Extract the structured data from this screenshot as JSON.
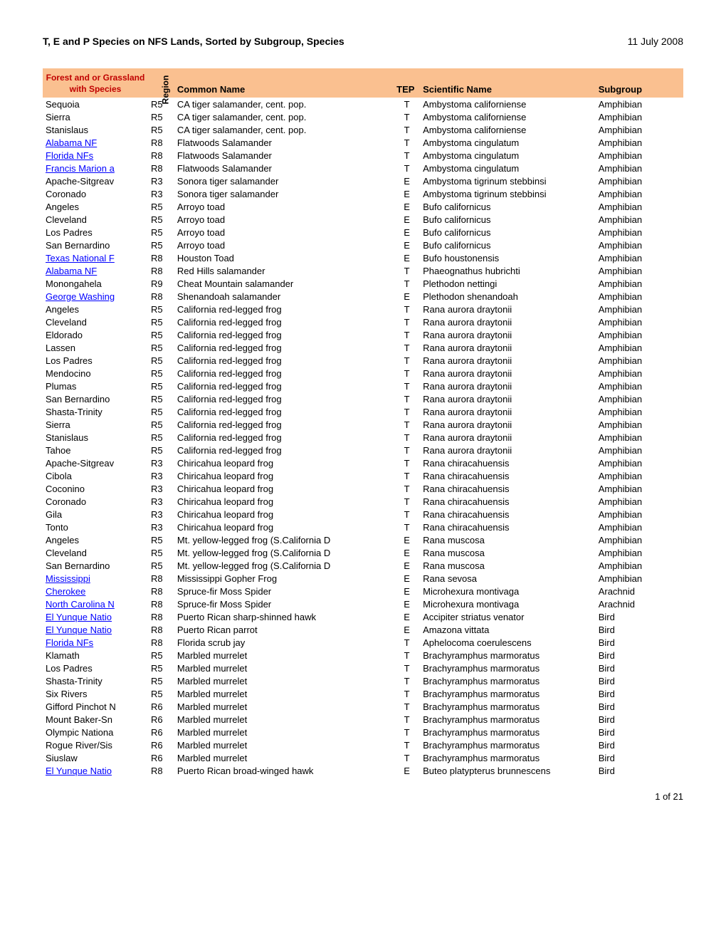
{
  "title": "T, E and P Species on NFS Lands, Sorted by Subgroup, Species",
  "date": "11 July 2008",
  "footer": "1 of 21",
  "headers": {
    "forest": "Forest and or Grassland with Species",
    "region": "Region",
    "common": "Common Name",
    "tep": "TEP",
    "scientific": "Scientific Name",
    "subgroup": "Subgroup"
  },
  "rows": [
    {
      "forest": "Sequoia",
      "link": false,
      "region": "R5",
      "common": "CA tiger salamander, cent. pop.",
      "tep": "T",
      "scientific": "Ambystoma californiense",
      "subgroup": "Amphibian"
    },
    {
      "forest": "Sierra",
      "link": false,
      "region": "R5",
      "common": "CA tiger salamander, cent. pop.",
      "tep": "T",
      "scientific": "Ambystoma californiense",
      "subgroup": "Amphibian"
    },
    {
      "forest": "Stanislaus",
      "link": false,
      "region": "R5",
      "common": "CA tiger salamander, cent. pop.",
      "tep": "T",
      "scientific": "Ambystoma californiense",
      "subgroup": "Amphibian"
    },
    {
      "forest": "Alabama NF",
      "link": true,
      "region": "R8",
      "common": "Flatwoods Salamander",
      "tep": "T",
      "scientific": "Ambystoma cingulatum",
      "subgroup": "Amphibian"
    },
    {
      "forest": "Florida NFs",
      "link": true,
      "region": "R8",
      "common": "Flatwoods Salamander",
      "tep": "T",
      "scientific": "Ambystoma cingulatum",
      "subgroup": "Amphibian"
    },
    {
      "forest": "Francis Marion a",
      "link": true,
      "region": "R8",
      "common": "Flatwoods Salamander",
      "tep": "T",
      "scientific": "Ambystoma cingulatum",
      "subgroup": "Amphibian"
    },
    {
      "forest": "Apache-Sitgreav",
      "link": false,
      "region": "R3",
      "common": "Sonora tiger salamander",
      "tep": "E",
      "scientific": "Ambystoma tigrinum stebbinsi",
      "subgroup": "Amphibian"
    },
    {
      "forest": "Coronado",
      "link": false,
      "region": "R3",
      "common": "Sonora tiger salamander",
      "tep": "E",
      "scientific": "Ambystoma tigrinum stebbinsi",
      "subgroup": "Amphibian"
    },
    {
      "forest": "Angeles",
      "link": false,
      "region": "R5",
      "common": "Arroyo toad",
      "tep": "E",
      "scientific": "Bufo californicus",
      "subgroup": "Amphibian"
    },
    {
      "forest": "Cleveland",
      "link": false,
      "region": "R5",
      "common": "Arroyo toad",
      "tep": "E",
      "scientific": "Bufo californicus",
      "subgroup": "Amphibian"
    },
    {
      "forest": "Los Padres",
      "link": false,
      "region": "R5",
      "common": "Arroyo toad",
      "tep": "E",
      "scientific": "Bufo californicus",
      "subgroup": "Amphibian"
    },
    {
      "forest": "San Bernardino",
      "link": false,
      "region": "R5",
      "common": "Arroyo toad",
      "tep": "E",
      "scientific": "Bufo californicus",
      "subgroup": "Amphibian"
    },
    {
      "forest": "Texas National F",
      "link": true,
      "region": "R8",
      "common": "Houston Toad",
      "tep": "E",
      "scientific": "Bufo houstonensis",
      "subgroup": "Amphibian"
    },
    {
      "forest": "Alabama NF",
      "link": true,
      "region": "R8",
      "common": "Red Hills salamander",
      "tep": "T",
      "scientific": "Phaeognathus hubrichti",
      "subgroup": "Amphibian"
    },
    {
      "forest": "Monongahela",
      "link": false,
      "region": "R9",
      "common": "Cheat Mountain salamander",
      "tep": "T",
      "scientific": "Plethodon nettingi",
      "subgroup": "Amphibian"
    },
    {
      "forest": "George Washing",
      "link": true,
      "region": "R8",
      "common": "Shenandoah salamander",
      "tep": "E",
      "scientific": "Plethodon shenandoah",
      "subgroup": "Amphibian"
    },
    {
      "forest": "Angeles",
      "link": false,
      "region": "R5",
      "common": "California red-legged frog",
      "tep": "T",
      "scientific": "Rana aurora draytonii",
      "subgroup": "Amphibian"
    },
    {
      "forest": "Cleveland",
      "link": false,
      "region": "R5",
      "common": "California red-legged frog",
      "tep": "T",
      "scientific": "Rana aurora draytonii",
      "subgroup": "Amphibian"
    },
    {
      "forest": "Eldorado",
      "link": false,
      "region": "R5",
      "common": "California red-legged frog",
      "tep": "T",
      "scientific": "Rana aurora draytonii",
      "subgroup": "Amphibian"
    },
    {
      "forest": "Lassen",
      "link": false,
      "region": "R5",
      "common": "California red-legged frog",
      "tep": "T",
      "scientific": "Rana aurora draytonii",
      "subgroup": "Amphibian"
    },
    {
      "forest": "Los Padres",
      "link": false,
      "region": "R5",
      "common": "California red-legged frog",
      "tep": "T",
      "scientific": "Rana aurora draytonii",
      "subgroup": "Amphibian"
    },
    {
      "forest": "Mendocino",
      "link": false,
      "region": "R5",
      "common": "California red-legged frog",
      "tep": "T",
      "scientific": "Rana aurora draytonii",
      "subgroup": "Amphibian"
    },
    {
      "forest": "Plumas",
      "link": false,
      "region": "R5",
      "common": "California red-legged frog",
      "tep": "T",
      "scientific": "Rana aurora draytonii",
      "subgroup": "Amphibian"
    },
    {
      "forest": "San Bernardino",
      "link": false,
      "region": "R5",
      "common": "California red-legged frog",
      "tep": "T",
      "scientific": "Rana aurora draytonii",
      "subgroup": "Amphibian"
    },
    {
      "forest": "Shasta-Trinity",
      "link": false,
      "region": "R5",
      "common": "California red-legged frog",
      "tep": "T",
      "scientific": "Rana aurora draytonii",
      "subgroup": "Amphibian"
    },
    {
      "forest": "Sierra",
      "link": false,
      "region": "R5",
      "common": "California red-legged frog",
      "tep": "T",
      "scientific": "Rana aurora draytonii",
      "subgroup": "Amphibian"
    },
    {
      "forest": "Stanislaus",
      "link": false,
      "region": "R5",
      "common": "California red-legged frog",
      "tep": "T",
      "scientific": "Rana aurora draytonii",
      "subgroup": "Amphibian"
    },
    {
      "forest": "Tahoe",
      "link": false,
      "region": "R5",
      "common": "California red-legged frog",
      "tep": "T",
      "scientific": "Rana aurora draytonii",
      "subgroup": "Amphibian"
    },
    {
      "forest": "Apache-Sitgreav",
      "link": false,
      "region": "R3",
      "common": "Chiricahua leopard frog",
      "tep": "T",
      "scientific": "Rana chiracahuensis",
      "subgroup": "Amphibian"
    },
    {
      "forest": "Cibola",
      "link": false,
      "region": "R3",
      "common": "Chiricahua leopard frog",
      "tep": "T",
      "scientific": "Rana chiracahuensis",
      "subgroup": "Amphibian"
    },
    {
      "forest": "Coconino",
      "link": false,
      "region": "R3",
      "common": "Chiricahua leopard frog",
      "tep": "T",
      "scientific": "Rana chiracahuensis",
      "subgroup": "Amphibian"
    },
    {
      "forest": "Coronado",
      "link": false,
      "region": "R3",
      "common": "Chiricahua leopard frog",
      "tep": "T",
      "scientific": "Rana chiracahuensis",
      "subgroup": "Amphibian"
    },
    {
      "forest": "Gila",
      "link": false,
      "region": "R3",
      "common": "Chiricahua leopard frog",
      "tep": "T",
      "scientific": "Rana chiracahuensis",
      "subgroup": "Amphibian"
    },
    {
      "forest": "Tonto",
      "link": false,
      "region": "R3",
      "common": "Chiricahua leopard frog",
      "tep": "T",
      "scientific": "Rana chiracahuensis",
      "subgroup": "Amphibian"
    },
    {
      "forest": "Angeles",
      "link": false,
      "region": "R5",
      "common": "Mt. yellow-legged frog (S.California D",
      "tep": "E",
      "scientific": "Rana muscosa",
      "subgroup": "Amphibian"
    },
    {
      "forest": "Cleveland",
      "link": false,
      "region": "R5",
      "common": "Mt. yellow-legged frog (S.California D",
      "tep": "E",
      "scientific": "Rana muscosa",
      "subgroup": "Amphibian"
    },
    {
      "forest": "San Bernardino",
      "link": false,
      "region": "R5",
      "common": "Mt. yellow-legged frog (S.California D",
      "tep": "E",
      "scientific": "Rana muscosa",
      "subgroup": "Amphibian"
    },
    {
      "forest": "Mississippi",
      "link": true,
      "region": "R8",
      "common": "Mississippi Gopher Frog",
      "tep": "E",
      "scientific": "Rana sevosa",
      "subgroup": "Amphibian"
    },
    {
      "forest": "Cherokee",
      "link": true,
      "region": "R8",
      "common": "Spruce-fir Moss Spider",
      "tep": "E",
      "scientific": "Microhexura montivaga",
      "subgroup": "Arachnid"
    },
    {
      "forest": "North Carolina N",
      "link": true,
      "region": "R8",
      "common": "Spruce-fir Moss Spider",
      "tep": "E",
      "scientific": "Microhexura montivaga",
      "subgroup": "Arachnid"
    },
    {
      "forest": "El Yunque Natio",
      "link": true,
      "region": "R8",
      "common": "Puerto Rican sharp-shinned hawk",
      "tep": "E",
      "scientific": "Accipiter striatus venator",
      "subgroup": "Bird"
    },
    {
      "forest": "El Yunque Natio",
      "link": true,
      "region": "R8",
      "common": "Puerto Rican parrot",
      "tep": "E",
      "scientific": "Amazona vittata",
      "subgroup": "Bird"
    },
    {
      "forest": "Florida NFs",
      "link": true,
      "region": "R8",
      "common": "Florida scrub jay",
      "tep": "T",
      "scientific": "Aphelocoma coerulescens",
      "subgroup": "Bird"
    },
    {
      "forest": "Klamath",
      "link": false,
      "region": "R5",
      "common": "Marbled murrelet",
      "tep": "T",
      "scientific": "Brachyramphus marmoratus",
      "subgroup": "Bird"
    },
    {
      "forest": "Los Padres",
      "link": false,
      "region": "R5",
      "common": "Marbled murrelet",
      "tep": "T",
      "scientific": "Brachyramphus marmoratus",
      "subgroup": "Bird"
    },
    {
      "forest": "Shasta-Trinity",
      "link": false,
      "region": "R5",
      "common": "Marbled murrelet",
      "tep": "T",
      "scientific": "Brachyramphus marmoratus",
      "subgroup": "Bird"
    },
    {
      "forest": "Six Rivers",
      "link": false,
      "region": "R5",
      "common": "Marbled murrelet",
      "tep": "T",
      "scientific": "Brachyramphus marmoratus",
      "subgroup": "Bird"
    },
    {
      "forest": "Gifford Pinchot N",
      "link": false,
      "region": "R6",
      "common": "Marbled murrelet",
      "tep": "T",
      "scientific": "Brachyramphus marmoratus",
      "subgroup": "Bird"
    },
    {
      "forest": "Mount Baker-Sn",
      "link": false,
      "region": "R6",
      "common": "Marbled murrelet",
      "tep": "T",
      "scientific": "Brachyramphus marmoratus",
      "subgroup": "Bird"
    },
    {
      "forest": "Olympic Nationa",
      "link": false,
      "region": "R6",
      "common": "Marbled murrelet",
      "tep": "T",
      "scientific": "Brachyramphus marmoratus",
      "subgroup": "Bird"
    },
    {
      "forest": "Rogue River/Sis",
      "link": false,
      "region": "R6",
      "common": "Marbled murrelet",
      "tep": "T",
      "scientific": "Brachyramphus marmoratus",
      "subgroup": "Bird"
    },
    {
      "forest": "Siuslaw",
      "link": false,
      "region": "R6",
      "common": "Marbled murrelet",
      "tep": "T",
      "scientific": "Brachyramphus marmoratus",
      "subgroup": "Bird"
    },
    {
      "forest": "El Yunque Natio",
      "link": true,
      "region": "R8",
      "common": "Puerto Rican broad-winged hawk",
      "tep": "E",
      "scientific": "Buteo platypterus brunnescens",
      "subgroup": "Bird"
    }
  ]
}
